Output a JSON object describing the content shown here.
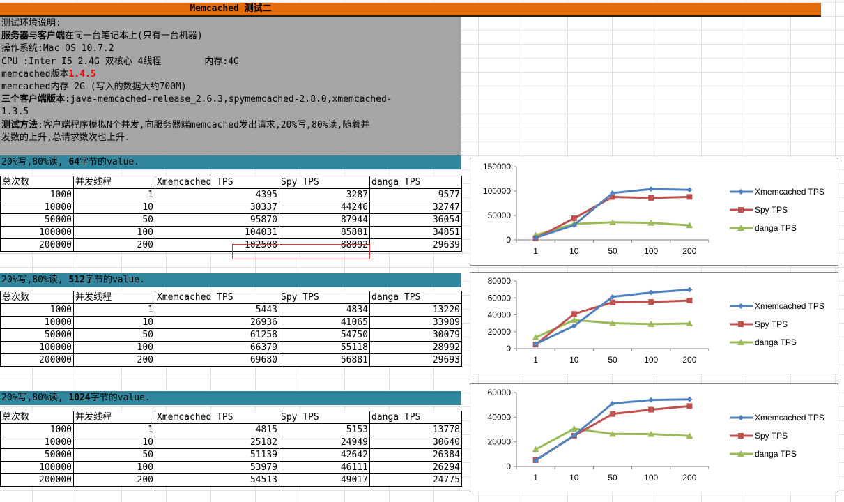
{
  "title": "Memcached 测试二",
  "description": {
    "line1": "测试环境说明:",
    "line2_b": "服务器",
    "line2_mid": "与",
    "line2_b2": "客户端",
    "line2_rest": "在同一台笔记本上(只有一台机器)",
    "line3": "操作系统:Mac OS 10.7.2",
    "line4": "CPU :Inter I5 2.4G 双核心 4线程",
    "line4_mem": "内存:4G",
    "line5_label": "memcached版本",
    "line5_version": "1.4.5",
    "line6": "memcached内存 2G (写入的数据大约700M)",
    "line7_b": "三个客户端版本",
    "line7_rest": ":java-memcached-release_2.6.3,spymemcached-2.8.0,xmemcached-",
    "line8": "1.3.5",
    "line9_b": "测试方法",
    "line9_rest": ":客户端程序模拟N个并发,向服务器端memcached发出请求,20%写,80%读,随着并",
    "line10": "发数的上升,总请求数次也上升."
  },
  "columns": [
    "总次数",
    "并发线程",
    "Xmemcached TPS",
    "Spy TPS",
    "danga TPS"
  ],
  "sections": [
    {
      "band_pre": "20%写,80%读, ",
      "band_bold": "64",
      "band_post": "字节的value.",
      "rows": [
        [
          "1000",
          "1",
          "4395",
          "3287",
          "9577"
        ],
        [
          "10000",
          "10",
          "30337",
          "44246",
          "32747"
        ],
        [
          "50000",
          "50",
          "95870",
          "87944",
          "36054"
        ],
        [
          "100000",
          "100",
          "104031",
          "85881",
          "34851"
        ],
        [
          "200000",
          "200",
          "102508",
          "88092",
          "29639"
        ]
      ]
    },
    {
      "band_pre": "20%写,80%读, ",
      "band_bold": "512",
      "band_post": "字节的value.",
      "rows": [
        [
          "1000",
          "1",
          "5443",
          "4834",
          "13220"
        ],
        [
          "10000",
          "10",
          "26936",
          "41065",
          "33909"
        ],
        [
          "50000",
          "50",
          "61258",
          "54750",
          "30079"
        ],
        [
          "100000",
          "100",
          "66379",
          "55118",
          "28992"
        ],
        [
          "200000",
          "200",
          "69680",
          "56881",
          "29693"
        ]
      ]
    },
    {
      "band_pre": "20%写,80%读, ",
      "band_bold": "1024",
      "band_post": "字节的value.",
      "rows": [
        [
          "1000",
          "1",
          "4815",
          "5153",
          "13778"
        ],
        [
          "10000",
          "10",
          "25182",
          "24949",
          "30640"
        ],
        [
          "50000",
          "50",
          "51139",
          "42642",
          "26384"
        ],
        [
          "100000",
          "100",
          "53979",
          "46111",
          "26294"
        ],
        [
          "200000",
          "200",
          "54513",
          "49017",
          "24775"
        ]
      ]
    }
  ],
  "chart_data": [
    {
      "type": "line",
      "categories": [
        "1",
        "10",
        "50",
        "100",
        "200"
      ],
      "ylim": [
        0,
        150000
      ],
      "yticks": [
        "0",
        "50000",
        "100000",
        "150000"
      ],
      "legend": "right",
      "series": [
        {
          "name": "Xmemcached TPS",
          "color": "#4f81bd",
          "marker": "diamond",
          "values": [
            4395,
            30337,
            95870,
            104031,
            102508
          ]
        },
        {
          "name": "Spy TPS",
          "color": "#c0504d",
          "marker": "square",
          "values": [
            3287,
            44246,
            87944,
            85881,
            88092
          ]
        },
        {
          "name": "danga TPS",
          "color": "#9bbb59",
          "marker": "triangle",
          "values": [
            9577,
            32747,
            36054,
            34851,
            29639
          ]
        }
      ]
    },
    {
      "type": "line",
      "categories": [
        "1",
        "10",
        "50",
        "100",
        "200"
      ],
      "ylim": [
        0,
        80000
      ],
      "yticks": [
        "0",
        "20000",
        "40000",
        "60000",
        "80000"
      ],
      "legend": "right",
      "series": [
        {
          "name": "Xmemcached TPS",
          "color": "#4f81bd",
          "marker": "diamond",
          "values": [
            5443,
            26936,
            61258,
            66379,
            69680
          ]
        },
        {
          "name": "Spy TPS",
          "color": "#c0504d",
          "marker": "square",
          "values": [
            4834,
            41065,
            54750,
            55118,
            56881
          ]
        },
        {
          "name": "danga TPS",
          "color": "#9bbb59",
          "marker": "triangle",
          "values": [
            13220,
            33909,
            30079,
            28992,
            29693
          ]
        }
      ]
    },
    {
      "type": "line",
      "categories": [
        "1",
        "10",
        "50",
        "100",
        "200"
      ],
      "ylim": [
        0,
        60000
      ],
      "yticks": [
        "0",
        "20000",
        "40000",
        "60000"
      ],
      "legend": "right",
      "series": [
        {
          "name": "Xmemcached TPS",
          "color": "#4f81bd",
          "marker": "diamond",
          "values": [
            4815,
            25182,
            51139,
            53979,
            54513
          ]
        },
        {
          "name": "Spy TPS",
          "color": "#c0504d",
          "marker": "square",
          "values": [
            5153,
            24949,
            42642,
            46111,
            49017
          ]
        },
        {
          "name": "danga TPS",
          "color": "#9bbb59",
          "marker": "triangle",
          "values": [
            13778,
            30640,
            26384,
            26294,
            24775
          ]
        }
      ]
    }
  ]
}
